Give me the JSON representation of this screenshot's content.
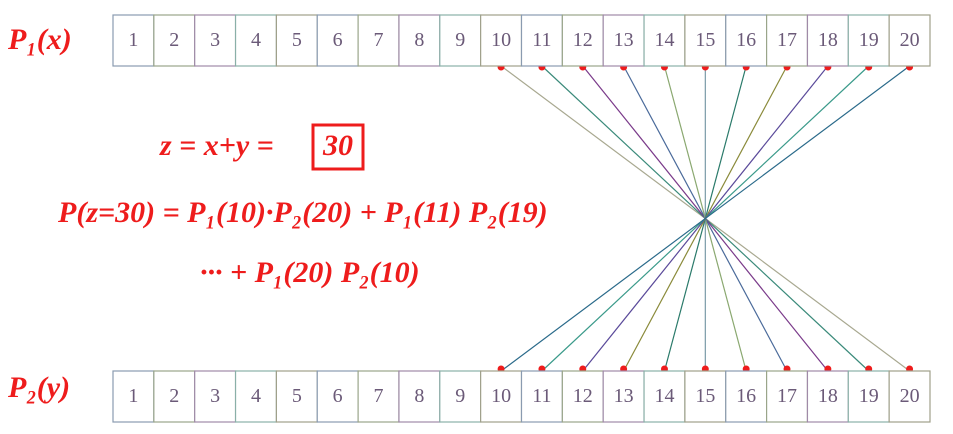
{
  "top_row": {
    "label": "P₁(x)",
    "cells": [
      1,
      2,
      3,
      4,
      5,
      6,
      7,
      8,
      9,
      10,
      11,
      12,
      13,
      14,
      15,
      16,
      17,
      18,
      19,
      20
    ]
  },
  "bottom_row": {
    "label": "P₂(y)",
    "cells": [
      1,
      2,
      3,
      4,
      5,
      6,
      7,
      8,
      9,
      10,
      11,
      12,
      13,
      14,
      15,
      16,
      17,
      18,
      19,
      20
    ]
  },
  "equations": [
    "z = x+y = ",
    "30",
    "P(z=30) = P₁(10)·P₂(20) + P₁(11) P₂(19)",
    "··· + P₁(20) P₂(10)"
  ]
}
